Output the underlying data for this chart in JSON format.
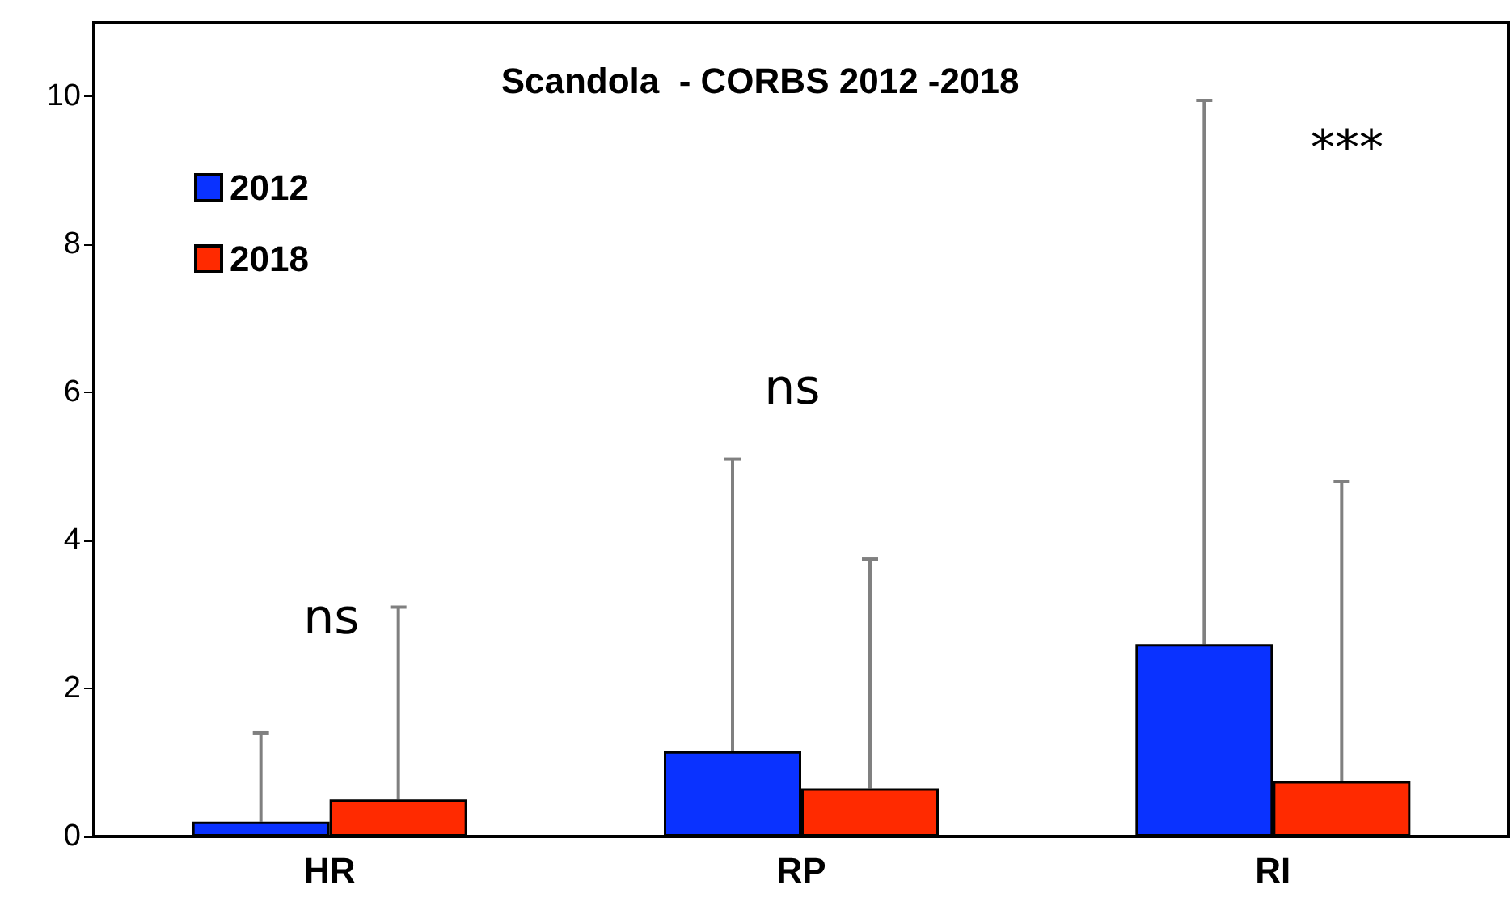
{
  "chart_data": {
    "type": "bar",
    "title": "Scandola  - CORBS 2012 -2018",
    "categories": [
      "HR",
      "RP",
      "RI"
    ],
    "series": [
      {
        "name": "2012",
        "color": "#0a32ff",
        "values": [
          0.2,
          1.15,
          2.6
        ],
        "errors": [
          [
            0.2,
            1.4
          ],
          [
            1.15,
            5.1
          ],
          [
            2.6,
            9.95
          ]
        ]
      },
      {
        "name": "2018",
        "color": "#ff2a00",
        "values": [
          0.5,
          0.65,
          0.75
        ],
        "errors": [
          [
            0.5,
            3.1
          ],
          [
            0.65,
            3.75
          ],
          [
            0.75,
            4.8
          ]
        ]
      }
    ],
    "annotations": [
      "ns",
      "ns",
      "***"
    ],
    "ylim": [
      0,
      11
    ],
    "yticks": [
      0,
      2,
      4,
      6,
      8,
      10
    ],
    "grid": false,
    "legend": "top left"
  }
}
